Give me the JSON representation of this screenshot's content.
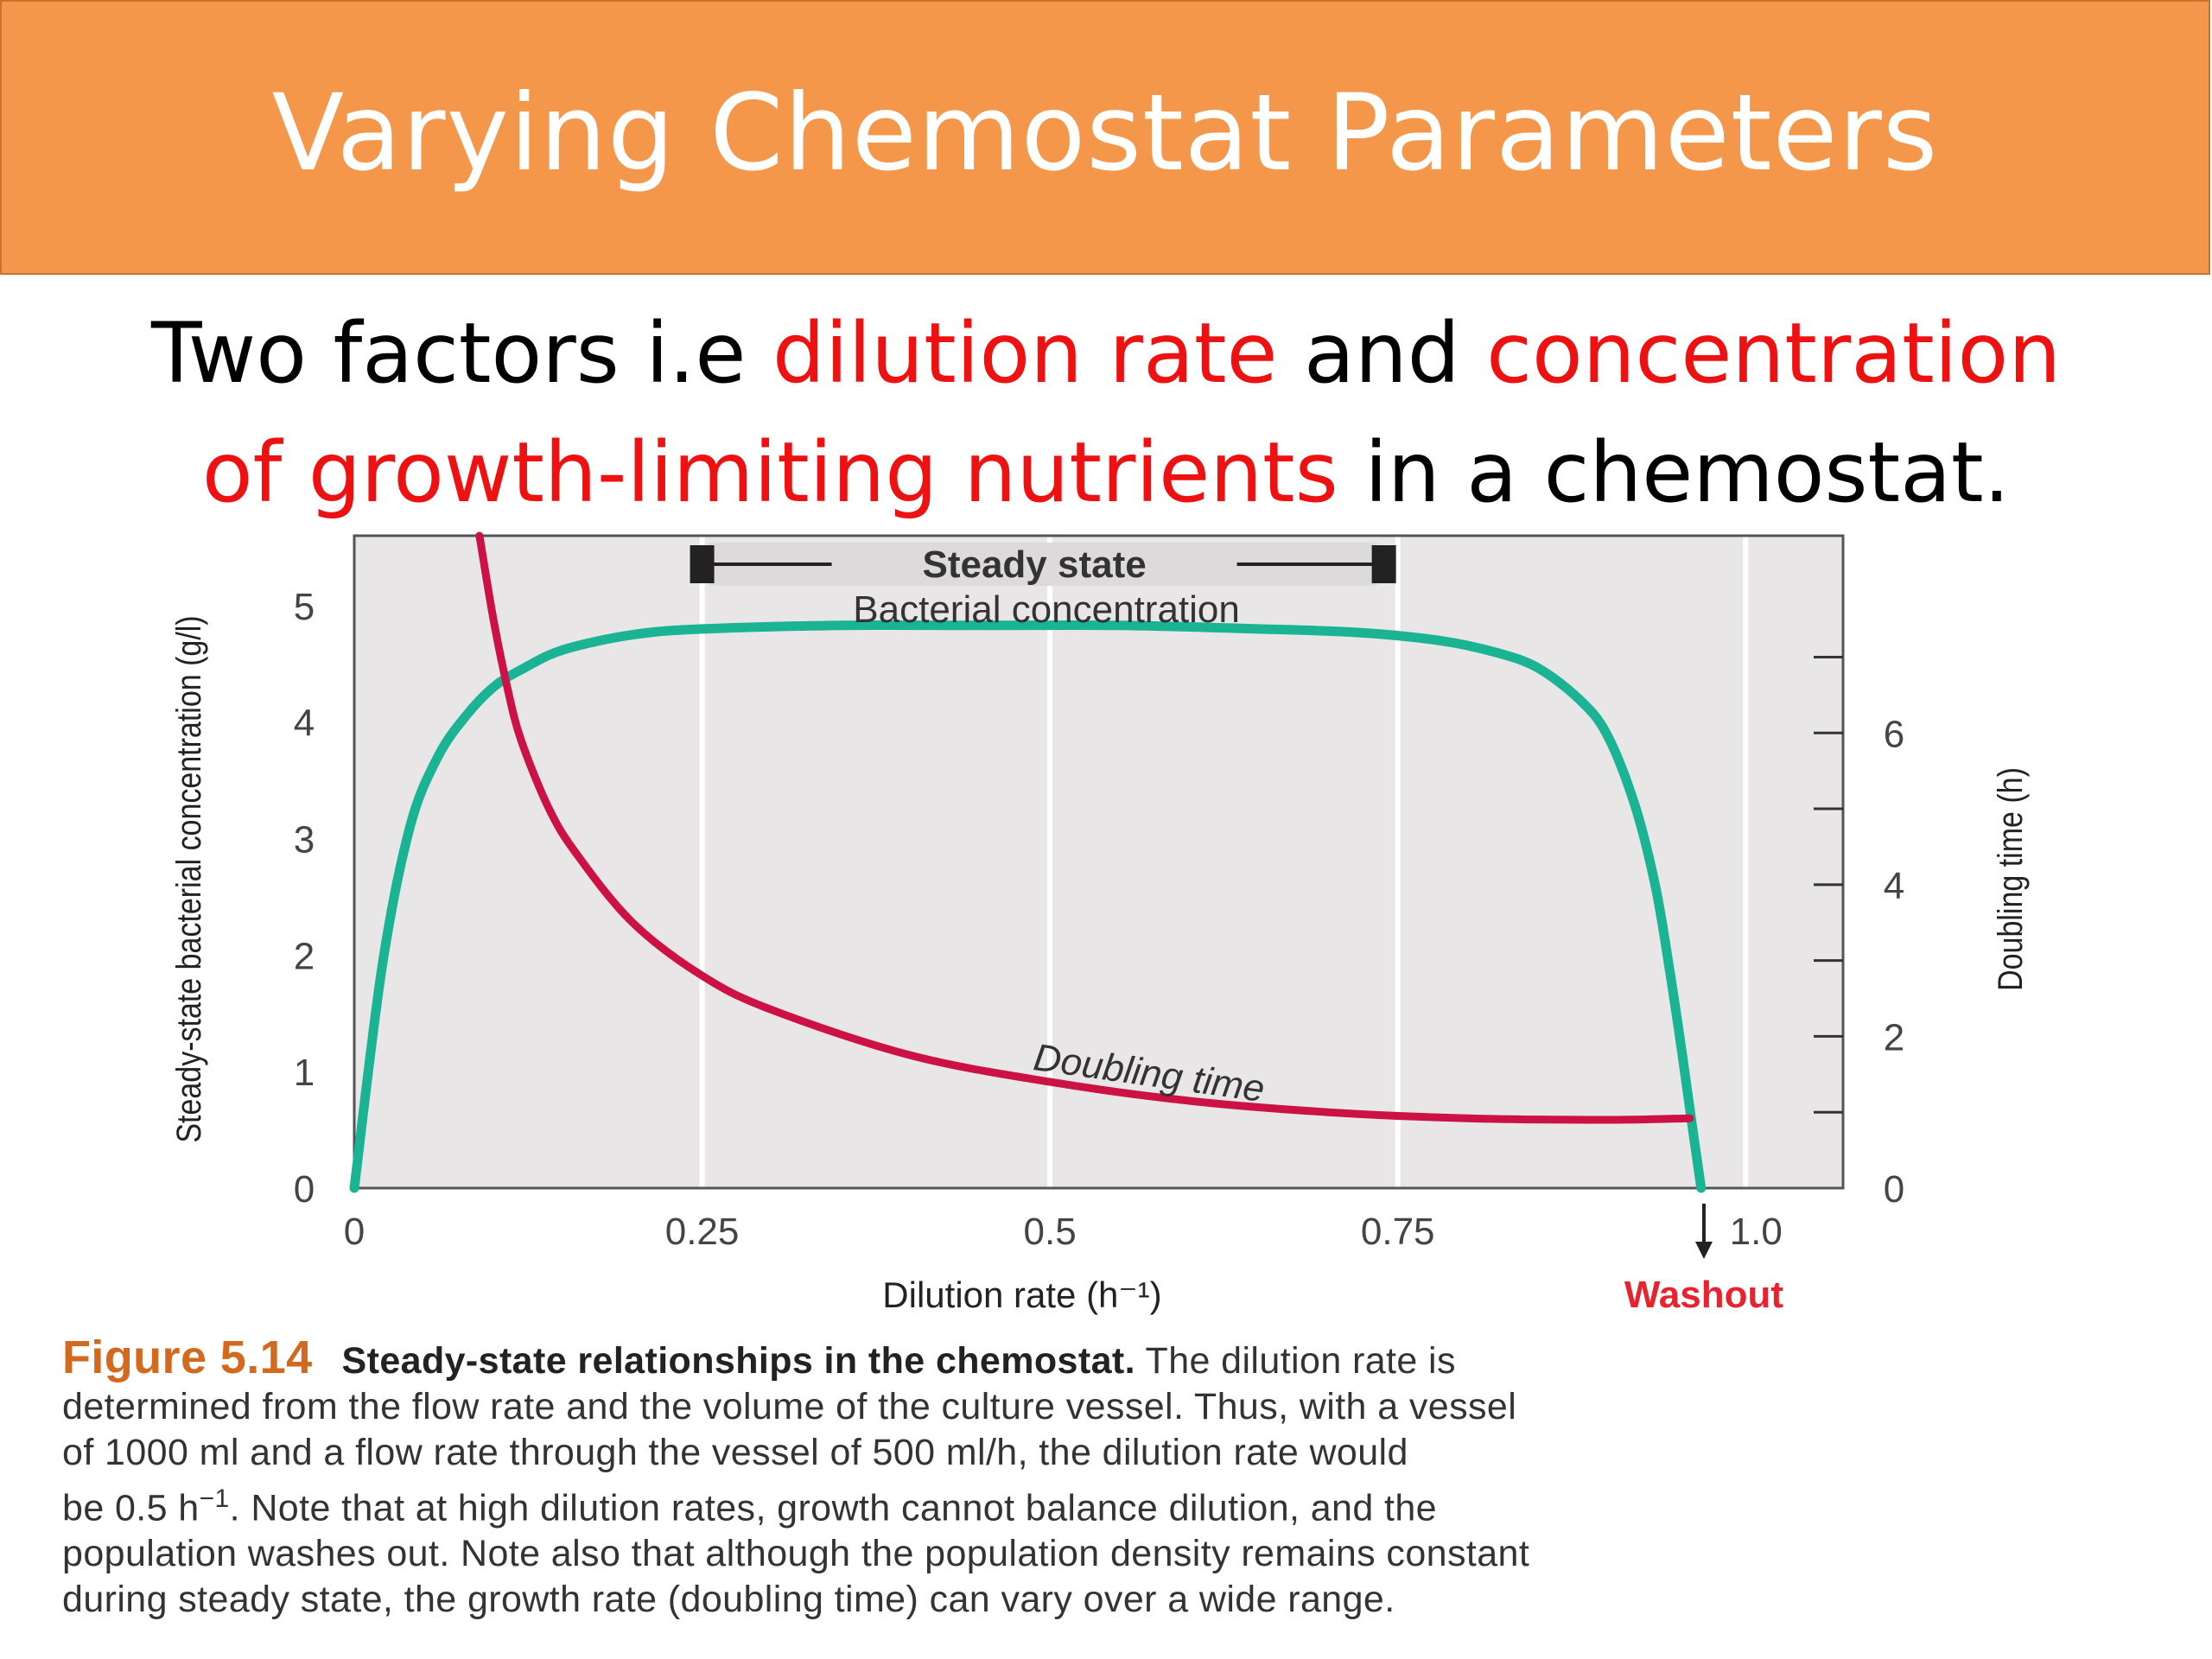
{
  "slide": {
    "title": "Varying Chemostat Parameters",
    "subtitle": {
      "part1": "Two factors i.e ",
      "highlight1": "dilution rate",
      "part2": " and ",
      "highlight2": "concentration of growth-limiting nutrients",
      "part3": " in a chemostat."
    },
    "colors": {
      "title_bg": "#f5974a",
      "highlight": "#ee1111"
    }
  },
  "chart_data": {
    "type": "line",
    "xlabel": "Dilution rate (h⁻¹)",
    "ylabel_left": "Steady-state bacterial concentration (g/l)",
    "ylabel_right": "Doubling time (h)",
    "xlim": [
      0,
      1.07
    ],
    "ylim_left": [
      0,
      5.6
    ],
    "ylim_right": [
      0,
      8.6
    ],
    "x_ticks": [
      0,
      0.25,
      0.5,
      0.75,
      1.0
    ],
    "x_tick_labels": [
      "0",
      "0.25",
      "0.5",
      "0.75",
      "1.0"
    ],
    "y_left_ticks": [
      0,
      1,
      2,
      3,
      4,
      5
    ],
    "y_left_tick_labels": [
      "0",
      "1",
      "2",
      "3",
      "4",
      "5"
    ],
    "y_right_ticks": [
      0,
      2,
      4,
      6
    ],
    "y_right_tick_labels": [
      "0",
      "2",
      "4",
      "6"
    ],
    "y_right_minor_ticks": [
      1,
      2,
      3,
      4,
      5,
      6,
      7
    ],
    "grid": true,
    "series": [
      {
        "name": "Bacterial concentration",
        "axis": "left",
        "color": "#1ab394",
        "x": [
          0,
          0.02,
          0.04,
          0.06,
          0.08,
          0.1,
          0.12,
          0.15,
          0.2,
          0.25,
          0.35,
          0.45,
          0.55,
          0.65,
          0.72,
          0.78,
          0.82,
          0.85,
          0.88,
          0.9,
          0.92,
          0.935,
          0.945,
          0.955,
          0.962,
          0.968
        ],
        "y": [
          0,
          1.9,
          3.1,
          3.7,
          4.05,
          4.3,
          4.45,
          4.62,
          4.75,
          4.8,
          4.83,
          4.83,
          4.83,
          4.8,
          4.77,
          4.7,
          4.6,
          4.47,
          4.2,
          3.9,
          3.3,
          2.6,
          1.9,
          1.1,
          0.5,
          0
        ]
      },
      {
        "name": "Doubling time",
        "axis": "right",
        "color": "#cc1144",
        "x": [
          0.09,
          0.1,
          0.11,
          0.12,
          0.14,
          0.16,
          0.2,
          0.25,
          0.3,
          0.4,
          0.5,
          0.6,
          0.7,
          0.8,
          0.9,
          0.96
        ],
        "y": [
          8.6,
          7.5,
          6.6,
          5.9,
          5.0,
          4.4,
          3.5,
          2.8,
          2.35,
          1.75,
          1.4,
          1.15,
          1.0,
          0.92,
          0.9,
          0.92
        ]
      }
    ],
    "annotations": {
      "steady_state": {
        "label": "Steady state",
        "x_start": 0.25,
        "x_end": 0.74
      },
      "bacterial_concentration_label": "Bacterial concentration",
      "doubling_time_label": "Doubling time",
      "washout": {
        "label": "Washout",
        "x": 0.97,
        "color": "#e8232f"
      }
    }
  },
  "caption": {
    "figure_number": "Figure 5.14",
    "bold_title": "Steady-state relationships in the chemostat.",
    "line1": " The dilution rate is",
    "line2": "determined from the flow rate and the volume of the culture vessel. Thus, with a vessel",
    "line3": "of 1000 ml and a flow rate through the vessel of 500 ml/h, the dilution rate would",
    "line4_start": "be 0.5 h",
    "line4_sup": "−1",
    "line4_end": ". Note that at high dilution rates, growth cannot balance dilution, and the",
    "line5": "population washes out. Note also that although the population density remains constant",
    "line6": "during steady state, the growth rate (doubling time) can vary over a wide range."
  }
}
